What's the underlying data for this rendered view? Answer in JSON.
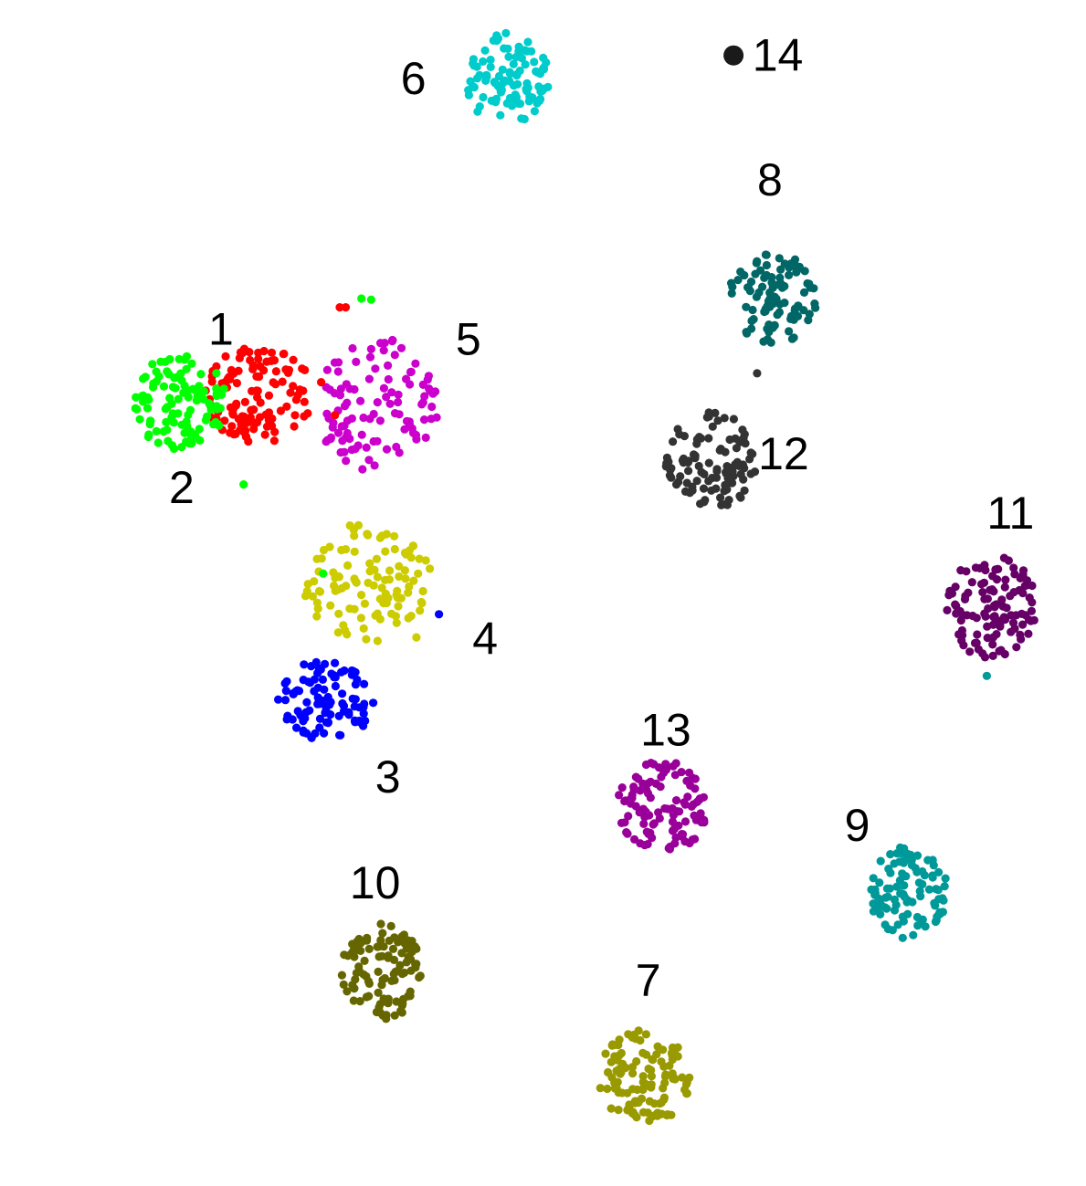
{
  "chart_data": {
    "type": "scatter",
    "title": "",
    "xlabel": "",
    "ylabel": "",
    "axes_visible": false,
    "grid": false,
    "legend": "none",
    "x_range": [
      0,
      100
    ],
    "y_range": [
      0,
      100
    ],
    "series": [
      {
        "label": "1",
        "color": "#ff0000",
        "center": [
          18.5,
          67.9
        ],
        "spread": [
          5.6,
          4.4
        ],
        "n": 115,
        "label_offset": [
          -3.9,
          5.9
        ]
      },
      {
        "label": "2",
        "color": "#00ff00",
        "center": [
          10.4,
          67.2
        ],
        "spread": [
          4.7,
          4.4
        ],
        "n": 105,
        "label_offset": [
          0.2,
          -7.8
        ]
      },
      {
        "label": "3",
        "color": "#0000ff",
        "center": [
          25.3,
          40.1
        ],
        "spread": [
          4.9,
          3.7
        ],
        "n": 100,
        "label_offset": [
          6.3,
          -7.0
        ]
      },
      {
        "label": "4",
        "color": "#cccc00",
        "center": [
          29.6,
          50.9
        ],
        "spread": [
          6.7,
          5.6
        ],
        "n": 105,
        "label_offset": [
          11.9,
          -5.2
        ]
      },
      {
        "label": "5",
        "color": "#cc00cc",
        "center": [
          30.5,
          66.9
        ],
        "spread": [
          6.3,
          6.2
        ],
        "n": 105,
        "label_offset": [
          9.3,
          6.0
        ]
      },
      {
        "label": "6",
        "color": "#00cccc",
        "center": [
          43.7,
          96.6
        ],
        "spread": [
          4.4,
          4.2
        ],
        "n": 100,
        "label_offset": [
          -9.5,
          0.0
        ]
      },
      {
        "label": "7",
        "color": "#999900",
        "center": [
          57.8,
          5.9
        ],
        "spread": [
          5.0,
          4.2
        ],
        "n": 115,
        "label_offset": [
          0.3,
          8.7
        ]
      },
      {
        "label": "8",
        "color": "#006666",
        "center": [
          70.8,
          76.6
        ],
        "spread": [
          4.6,
          4.1
        ],
        "n": 100,
        "label_offset": [
          -0.3,
          10.8
        ]
      },
      {
        "label": "9",
        "color": "#009999",
        "center": [
          84.6,
          22.6
        ],
        "spread": [
          4.0,
          4.3
        ],
        "n": 100,
        "label_offset": [
          -5.2,
          6.1
        ]
      },
      {
        "label": "10",
        "color": "#666600",
        "center": [
          31.1,
          15.5
        ],
        "spread": [
          4.2,
          4.4
        ],
        "n": 110,
        "label_offset": [
          -0.8,
          8.0
        ]
      },
      {
        "label": "11",
        "color": "#660066",
        "center": [
          93.1,
          48.6
        ],
        "spread": [
          4.6,
          4.7
        ],
        "n": 110,
        "label_offset": [
          1.9,
          8.5
        ]
      },
      {
        "label": "12",
        "color": "#333333",
        "center": [
          64.5,
          61.8
        ],
        "spread": [
          4.6,
          4.5
        ],
        "n": 105,
        "label_offset": [
          7.4,
          0.7
        ]
      },
      {
        "label": "13",
        "color": "#990099",
        "center": [
          59.5,
          30.3
        ],
        "spread": [
          4.6,
          4.3
        ],
        "n": 110,
        "label_offset": [
          0.4,
          7.1
        ]
      },
      {
        "label": "14",
        "color": "#1a1a1a",
        "center": [
          66.8,
          98.7
        ],
        "spread": [
          0,
          0
        ],
        "n": 1,
        "label_offset": [
          4.5,
          0.0
        ]
      }
    ],
    "stray_points": [
      {
        "x": 26.2,
        "y": 66.0,
        "color": "#ff0000"
      },
      {
        "x": 24.8,
        "y": 69.0,
        "color": "#ff0000"
      },
      {
        "x": 29.9,
        "y": 72.0,
        "color": "#cc00cc"
      },
      {
        "x": 28.9,
        "y": 76.6,
        "color": "#00ff00"
      },
      {
        "x": 29.9,
        "y": 76.5,
        "color": "#00ff00"
      },
      {
        "x": 26.7,
        "y": 75.8,
        "color": "#ff0000"
      },
      {
        "x": 27.3,
        "y": 75.8,
        "color": "#ff0000"
      },
      {
        "x": 16.9,
        "y": 59.7,
        "color": "#00ff00"
      },
      {
        "x": 25.0,
        "y": 51.6,
        "color": "#00ff00"
      },
      {
        "x": 24.6,
        "y": 50.0,
        "color": "#cccc00"
      },
      {
        "x": 26.1,
        "y": 50.5,
        "color": "#cccc00"
      },
      {
        "x": 36.8,
        "y": 47.9,
        "color": "#0000ff"
      },
      {
        "x": 34.5,
        "y": 45.8,
        "color": "#cccc00"
      },
      {
        "x": 69.2,
        "y": 69.8,
        "color": "#333333"
      },
      {
        "x": 92.6,
        "y": 42.3,
        "color": "#009999"
      }
    ]
  }
}
